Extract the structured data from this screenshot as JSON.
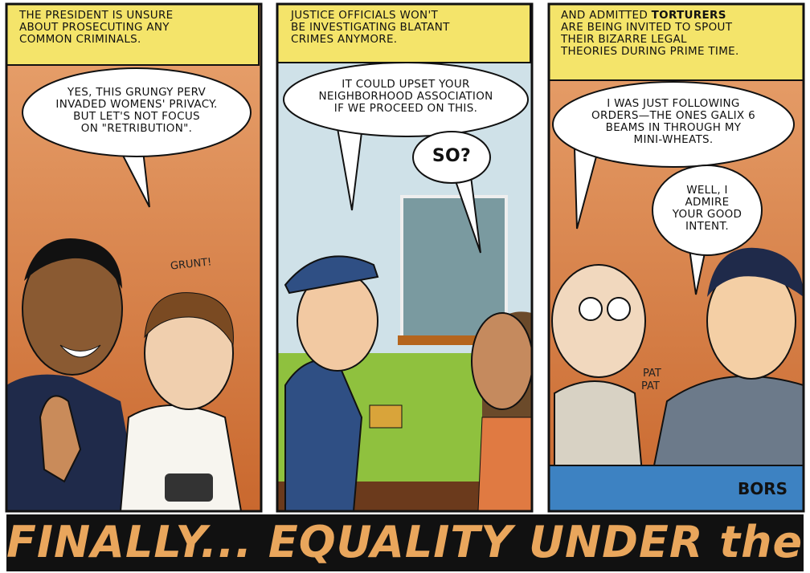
{
  "panels": [
    {
      "caption": [
        "THE PRESIDENT IS UNSURE",
        "ABOUT PROSECUTING ANY",
        "COMMON CRIMINALS."
      ],
      "balloons": [
        {
          "lines": [
            "YES, THIS GRUNGY PERV",
            "INVADED WOMENS' PRIVACY.",
            "BUT LET'S NOT FOCUS",
            "ON \"RETRIBUTION\"."
          ]
        }
      ],
      "sound_effects": [
        "GRUNT!"
      ]
    },
    {
      "caption": [
        "JUSTICE OFFICIALS WON'T",
        "BE INVESTIGATING BLATANT",
        "CRIMES ANYMORE."
      ],
      "balloons": [
        {
          "lines": [
            "IT COULD UPSET YOUR",
            "NEIGHBORHOOD ASSOCIATION",
            "IF WE PROCEED ON THIS."
          ]
        },
        {
          "lines": [
            "SO?"
          ]
        }
      ]
    },
    {
      "caption": [
        [
          "AND ADMITTED",
          "TORTURERS"
        ],
        "ARE BEING INVITED TO SPOUT",
        "THEIR BIZARRE LEGAL",
        "THEORIES DURING PRIME TIME."
      ],
      "balloons": [
        {
          "lines": [
            "I WAS JUST FOLLOWING",
            "ORDERS—THE ONES GALIX 6",
            "BEAMS IN THROUGH MY",
            "MINI-WHEATS."
          ]
        },
        {
          "lines": [
            "WELL, I",
            "ADMIRE",
            "YOUR GOOD",
            "INTENT."
          ]
        }
      ],
      "sound_effects": [
        "PAT",
        "PAT"
      ],
      "signature": "BORS"
    }
  ],
  "title": "FINALLY... EQUALITY UNDER the LAW!"
}
